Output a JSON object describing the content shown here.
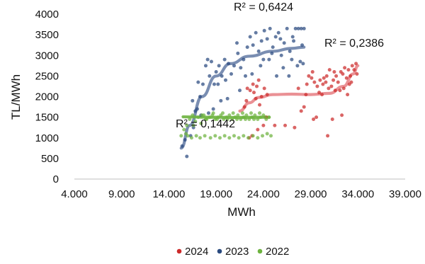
{
  "chart_data": {
    "type": "scatter",
    "title": "",
    "xlabel": "MWh",
    "ylabel": "TL/MWh",
    "xlim": [
      4000,
      39000
    ],
    "ylim": [
      0,
      4000
    ],
    "x_ticks": [
      4000,
      9000,
      14000,
      19000,
      24000,
      29000,
      34000,
      39000
    ],
    "x_tick_labels": [
      "4.000",
      "9.000",
      "14.000",
      "19.000",
      "24.000",
      "29.000",
      "34.000",
      "39.000"
    ],
    "y_ticks": [
      0,
      500,
      1000,
      1500,
      2000,
      2500,
      3000,
      3500,
      4000
    ],
    "y_tick_labels": [
      "0",
      "500",
      "1000",
      "1500",
      "2000",
      "2500",
      "3000",
      "3500",
      "4000"
    ],
    "grid": "none",
    "legend_position": "bottom",
    "series": [
      {
        "name": "2024",
        "color": "#cc2a2a",
        "trend_color": "#e8858a",
        "r2_label": "R² = 0,2386",
        "trend": [
          [
            21500,
            1650
          ],
          [
            22500,
            1850
          ],
          [
            23500,
            1980
          ],
          [
            25000,
            2050
          ],
          [
            27000,
            2060
          ],
          [
            29000,
            2050
          ],
          [
            31000,
            2080
          ],
          [
            32500,
            2250
          ],
          [
            33500,
            2550
          ],
          [
            34000,
            2750
          ]
        ],
        "points": [
          [
            22300,
            2200
          ],
          [
            22600,
            2150
          ],
          [
            22900,
            2300
          ],
          [
            23000,
            2100
          ],
          [
            23300,
            2250
          ],
          [
            23500,
            2400
          ],
          [
            23200,
            1950
          ],
          [
            23800,
            2000
          ],
          [
            24100,
            2200
          ],
          [
            24400,
            2050
          ],
          [
            22000,
            1750
          ],
          [
            22200,
            1900
          ],
          [
            23600,
            1800
          ],
          [
            24300,
            1500
          ],
          [
            24000,
            1300
          ],
          [
            25200,
            1300
          ],
          [
            22500,
            1000
          ],
          [
            22800,
            1050
          ],
          [
            23400,
            1200
          ],
          [
            26300,
            1300
          ],
          [
            27300,
            1250
          ],
          [
            28000,
            1650
          ],
          [
            28300,
            1750
          ],
          [
            28600,
            2300
          ],
          [
            28800,
            2500
          ],
          [
            29100,
            2450
          ],
          [
            29400,
            2350
          ],
          [
            29700,
            2250
          ],
          [
            30000,
            2400
          ],
          [
            30300,
            2300
          ],
          [
            30600,
            2350
          ],
          [
            30900,
            2200
          ],
          [
            31200,
            2250
          ],
          [
            31400,
            2400
          ],
          [
            31700,
            2500
          ],
          [
            31900,
            2350
          ],
          [
            32200,
            2600
          ],
          [
            32400,
            2550
          ],
          [
            32600,
            2700
          ],
          [
            32800,
            2450
          ],
          [
            33000,
            2650
          ],
          [
            33200,
            2500
          ],
          [
            33400,
            2750
          ],
          [
            33600,
            2650
          ],
          [
            33800,
            2800
          ],
          [
            33900,
            2550
          ],
          [
            33100,
            2300
          ],
          [
            32500,
            2200
          ],
          [
            31600,
            2150
          ],
          [
            31000,
            2650
          ],
          [
            30700,
            2500
          ],
          [
            30200,
            2050
          ],
          [
            29900,
            2100
          ],
          [
            29600,
            1500
          ],
          [
            29300,
            1450
          ],
          [
            30800,
            1050
          ],
          [
            31300,
            1450
          ],
          [
            32300,
            1550
          ],
          [
            28500,
            2050
          ],
          [
            27700,
            2200
          ],
          [
            31500,
            2600
          ],
          [
            32100,
            2150
          ],
          [
            30400,
            2450
          ],
          [
            29200,
            2600
          ],
          [
            33300,
            2350
          ],
          [
            32900,
            2050
          ]
        ]
      },
      {
        "name": "2023",
        "color": "#2a4a7f",
        "trend_color": "#6b82aa",
        "r2_label": "R² = 0,6424",
        "trend": [
          [
            15300,
            750
          ],
          [
            16200,
            1300
          ],
          [
            17500,
            2000
          ],
          [
            19000,
            2500
          ],
          [
            20500,
            2800
          ],
          [
            22500,
            2980
          ],
          [
            25000,
            3100
          ],
          [
            27000,
            3170
          ],
          [
            28300,
            3200
          ]
        ],
        "points": [
          [
            15400,
            800
          ],
          [
            15700,
            950
          ],
          [
            15900,
            550
          ],
          [
            16300,
            1050
          ],
          [
            16600,
            1250
          ],
          [
            17000,
            1700
          ],
          [
            17300,
            2000
          ],
          [
            17600,
            2300
          ],
          [
            17900,
            2750
          ],
          [
            18100,
            2900
          ],
          [
            18300,
            2500
          ],
          [
            18500,
            2850
          ],
          [
            18800,
            2300
          ],
          [
            19000,
            2600
          ],
          [
            19300,
            2750
          ],
          [
            19600,
            2500
          ],
          [
            19900,
            2900
          ],
          [
            20300,
            2800
          ],
          [
            20600,
            2550
          ],
          [
            20900,
            2750
          ],
          [
            21300,
            3050
          ],
          [
            21600,
            2700
          ],
          [
            21900,
            2900
          ],
          [
            22300,
            3200
          ],
          [
            22600,
            3450
          ],
          [
            22900,
            3250
          ],
          [
            23200,
            3550
          ],
          [
            23500,
            3100
          ],
          [
            23800,
            3350
          ],
          [
            24100,
            3600
          ],
          [
            24400,
            3400
          ],
          [
            24700,
            3650
          ],
          [
            25000,
            3200
          ],
          [
            25300,
            3450
          ],
          [
            25600,
            3550
          ],
          [
            25900,
            3000
          ],
          [
            26200,
            3300
          ],
          [
            26500,
            3650
          ],
          [
            26800,
            3100
          ],
          [
            27100,
            3450
          ],
          [
            27400,
            3650
          ],
          [
            27700,
            3650
          ],
          [
            28000,
            3650
          ],
          [
            28300,
            3650
          ],
          [
            27900,
            2850
          ],
          [
            27600,
            2750
          ],
          [
            28200,
            2800
          ],
          [
            27000,
            2900
          ],
          [
            26100,
            2700
          ],
          [
            25400,
            2500
          ],
          [
            24600,
            2900
          ],
          [
            23700,
            2750
          ],
          [
            22100,
            2500
          ],
          [
            21500,
            2150
          ],
          [
            20200,
            1950
          ],
          [
            19500,
            1900
          ],
          [
            18700,
            1700
          ],
          [
            18200,
            1600
          ],
          [
            17400,
            1550
          ],
          [
            16800,
            1650
          ],
          [
            16500,
            1900
          ],
          [
            17100,
            2350
          ],
          [
            19200,
            2300
          ],
          [
            20000,
            2400
          ],
          [
            21200,
            3300
          ],
          [
            22800,
            2550
          ],
          [
            24000,
            2900
          ],
          [
            25800,
            3400
          ],
          [
            26700,
            2500
          ],
          [
            28100,
            3250
          ],
          [
            27200,
            3350
          ],
          [
            24900,
            3050
          ]
        ]
      },
      {
        "name": "2022",
        "color": "#6db33f",
        "trend_color": "#6db33f",
        "r2_label": "R² = 0,1442",
        "trend": [
          [
            15500,
            1510
          ],
          [
            18000,
            1500
          ],
          [
            21000,
            1495
          ],
          [
            24000,
            1500
          ],
          [
            24600,
            1500
          ]
        ],
        "points": [
          [
            15300,
            1050
          ],
          [
            15600,
            1200
          ],
          [
            15900,
            1300
          ],
          [
            16200,
            1450
          ],
          [
            16500,
            1550
          ],
          [
            16800,
            1400
          ],
          [
            17100,
            1500
          ],
          [
            17400,
            1350
          ],
          [
            17700,
            1550
          ],
          [
            18000,
            1450
          ],
          [
            18300,
            1500
          ],
          [
            18600,
            1550
          ],
          [
            18900,
            1450
          ],
          [
            19200,
            1500
          ],
          [
            19500,
            1550
          ],
          [
            19800,
            1450
          ],
          [
            20100,
            1500
          ],
          [
            20400,
            1550
          ],
          [
            20700,
            1450
          ],
          [
            21000,
            1500
          ],
          [
            21300,
            1550
          ],
          [
            21600,
            1450
          ],
          [
            21900,
            1500
          ],
          [
            22200,
            1550
          ],
          [
            22500,
            1450
          ],
          [
            22800,
            1500
          ],
          [
            23100,
            1550
          ],
          [
            23400,
            1450
          ],
          [
            23700,
            1500
          ],
          [
            24000,
            1550
          ],
          [
            24300,
            1450
          ],
          [
            24600,
            1500
          ],
          [
            16000,
            1050
          ],
          [
            16400,
            1000
          ],
          [
            16900,
            1050
          ],
          [
            17300,
            1000
          ],
          [
            17800,
            1050
          ],
          [
            18400,
            1000
          ],
          [
            18900,
            1050
          ],
          [
            19400,
            1000
          ],
          [
            19900,
            1050
          ],
          [
            20400,
            1000
          ],
          [
            20900,
            1050
          ],
          [
            21400,
            1000
          ],
          [
            21900,
            1050
          ],
          [
            22400,
            1000
          ],
          [
            22900,
            1050
          ],
          [
            23400,
            1000
          ],
          [
            23900,
            1050
          ],
          [
            24400,
            1100
          ],
          [
            24800,
            1050
          ],
          [
            17500,
            1550
          ],
          [
            18700,
            1600
          ],
          [
            19700,
            1600
          ],
          [
            20800,
            1600
          ],
          [
            21800,
            1600
          ],
          [
            22700,
            1600
          ],
          [
            23600,
            1600
          ],
          [
            17900,
            1450
          ],
          [
            19100,
            1450
          ],
          [
            20200,
            1450
          ],
          [
            21200,
            1450
          ],
          [
            22100,
            1450
          ],
          [
            23000,
            1450
          ],
          [
            24200,
            1500
          ],
          [
            16600,
            1300
          ],
          [
            15800,
            1100
          ]
        ]
      }
    ]
  }
}
